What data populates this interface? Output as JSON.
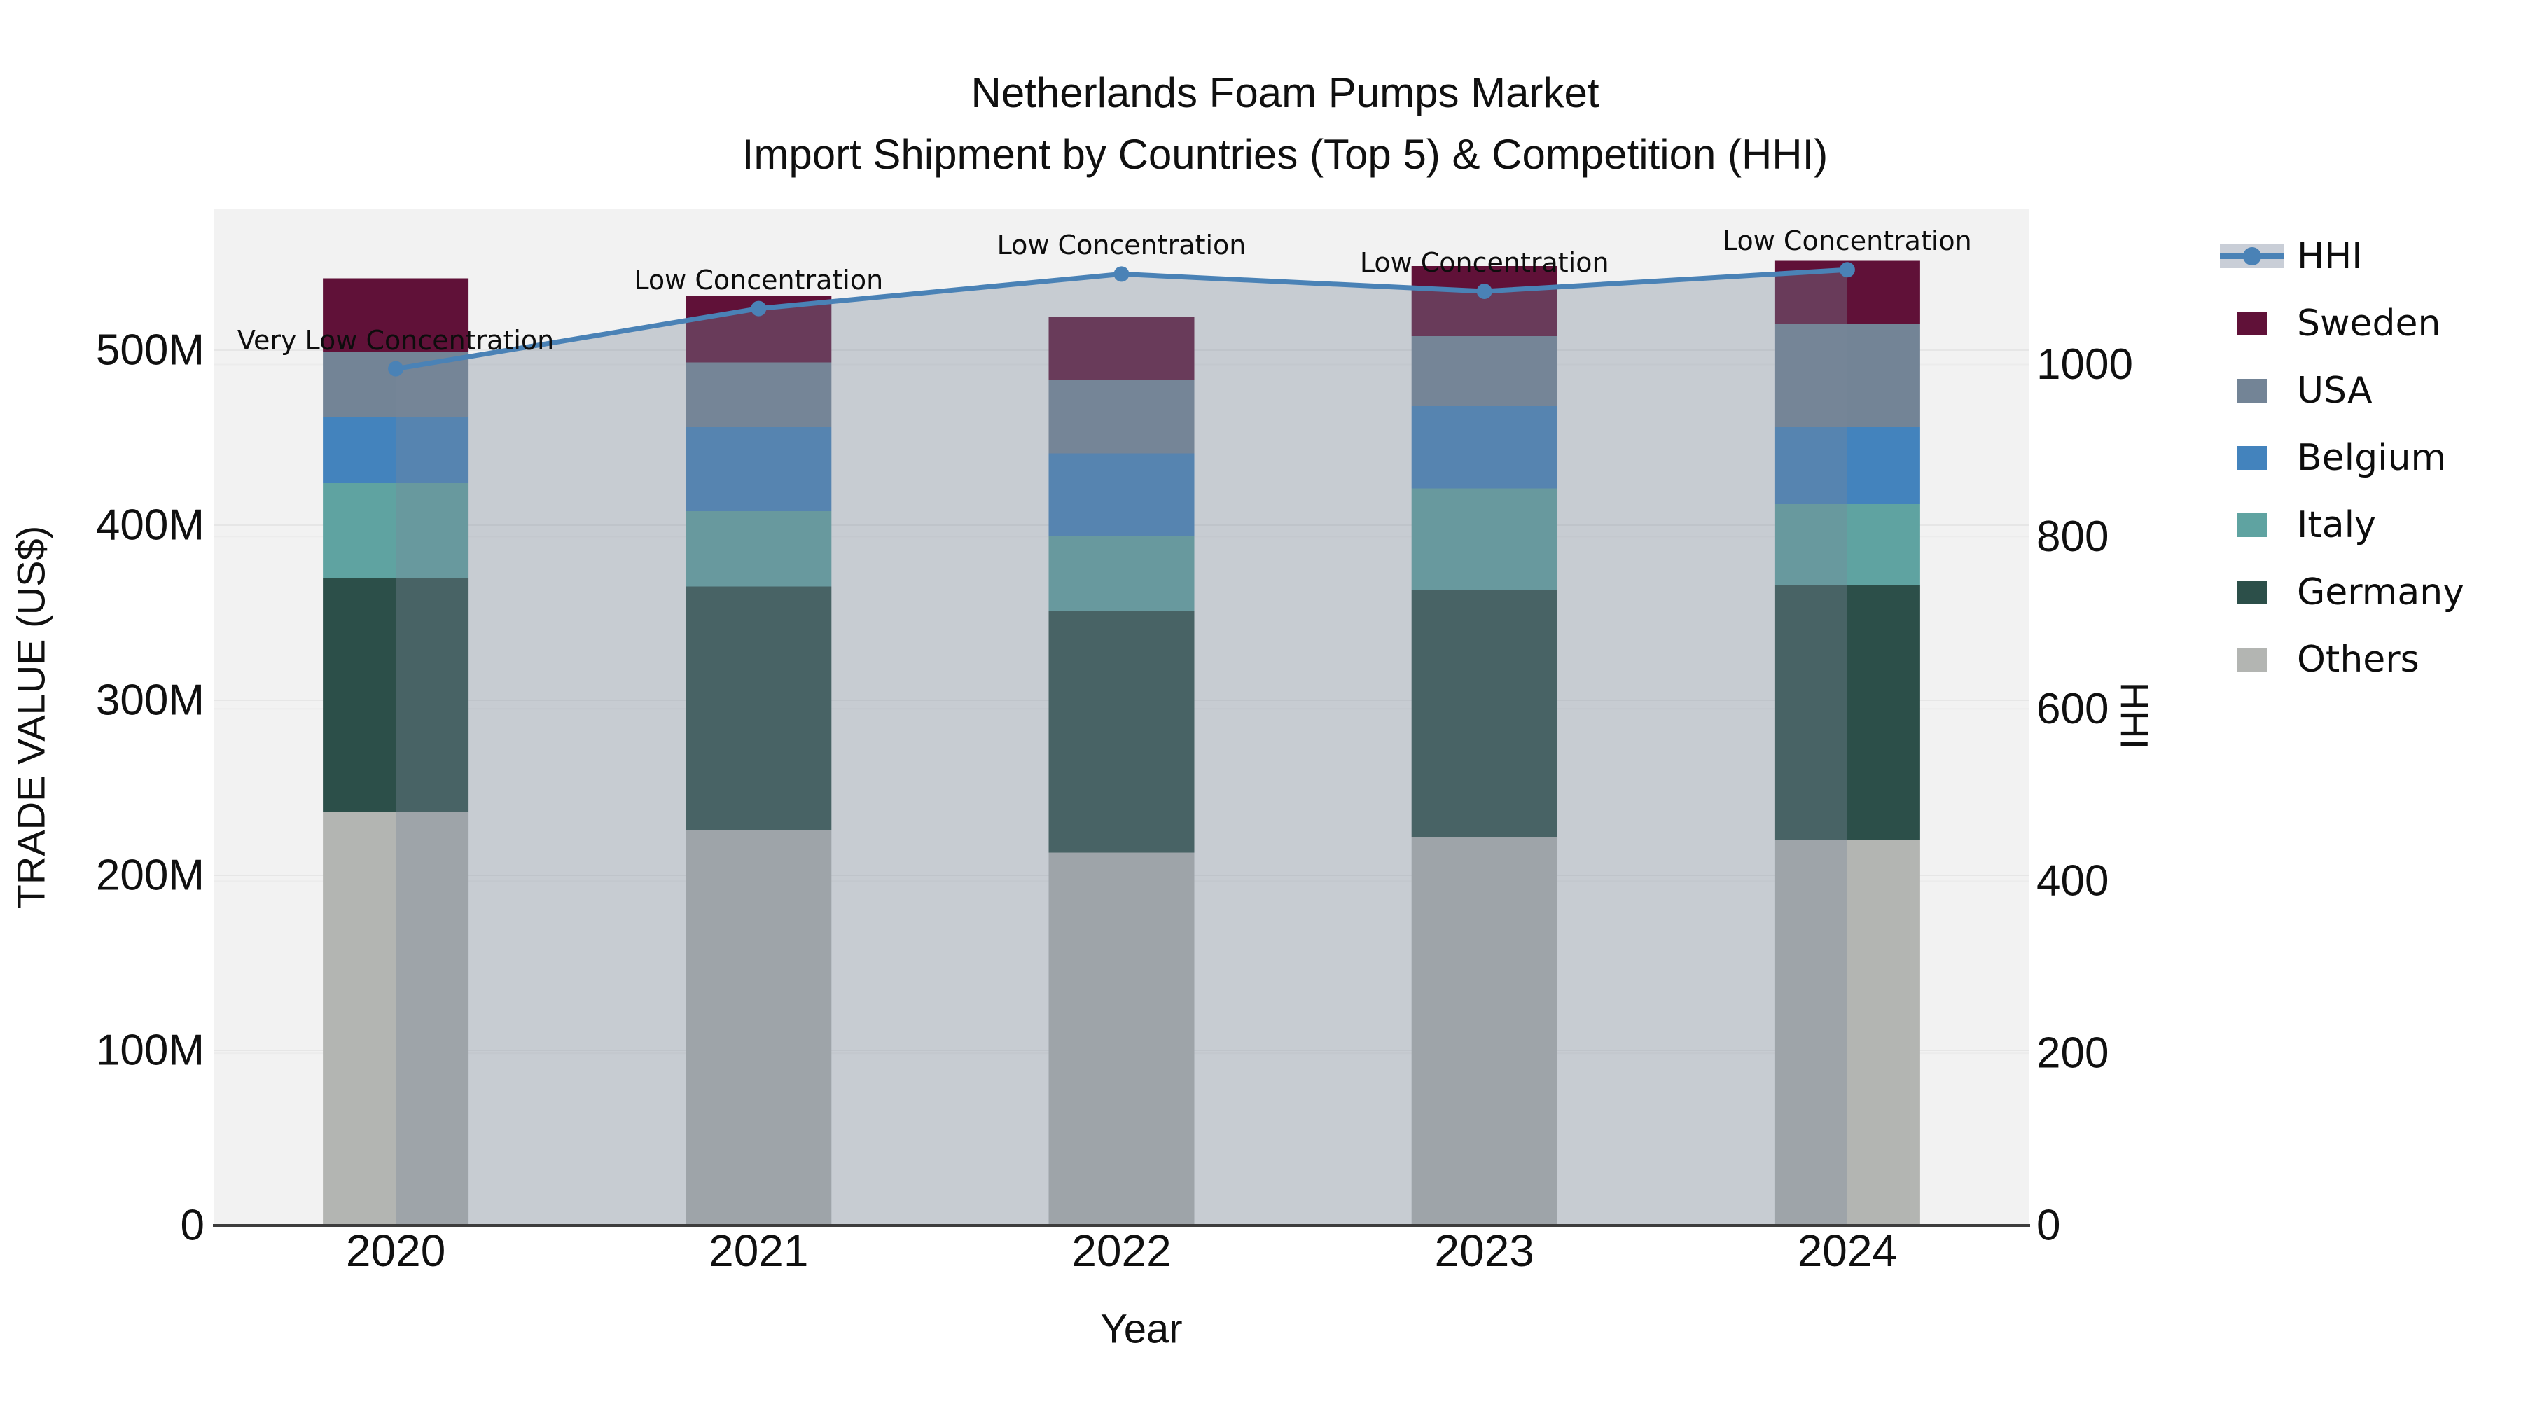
{
  "chart_data": {
    "type": "bar+line",
    "title": "Netherlands Foam Pumps Market",
    "subtitle": "Import Shipment by Countries (Top 5) & Competition (HHI)",
    "xlabel": "Year",
    "ylabel_left": "TRADE VALUE (US$)",
    "ylabel_right": "HHI",
    "categories": [
      "2020",
      "2021",
      "2022",
      "2023",
      "2024"
    ],
    "value_unit": "millions US$",
    "series": [
      {
        "name": "Others",
        "color": "#b3b5b2",
        "values": [
          236,
          226,
          213,
          222,
          220
        ]
      },
      {
        "name": "Germany",
        "color": "#2c4f49",
        "values": [
          134,
          139,
          138,
          141,
          146
        ]
      },
      {
        "name": "Italy",
        "color": "#5fa3a1",
        "values": [
          54,
          43,
          43,
          58,
          46
        ]
      },
      {
        "name": "Belgium",
        "color": "#4383bd",
        "values": [
          38,
          48,
          47,
          47,
          44
        ]
      },
      {
        "name": "USA",
        "color": "#738496",
        "values": [
          37,
          37,
          42,
          40,
          59
        ]
      },
      {
        "name": "Sweden",
        "color": "#601138",
        "values": [
          42,
          38,
          36,
          40,
          36
        ]
      }
    ],
    "hhi": {
      "name": "HHI",
      "line_color": "#4a82b6",
      "area_fill": "rgba(122,135,153,0.36)",
      "values": [
        995,
        1065,
        1105,
        1085,
        1110
      ],
      "annotations": [
        "Very Low Concentration",
        "Low Concentration",
        "Low Concentration",
        "Low Concentration",
        "Low Concentration"
      ]
    },
    "left_axis": {
      "tick_values": [
        0,
        100,
        200,
        300,
        400,
        500
      ],
      "tick_labels": [
        "0",
        "100M",
        "200M",
        "300M",
        "400M",
        "500M"
      ]
    },
    "right_axis": {
      "tick_values": [
        0,
        200,
        400,
        600,
        800,
        1000
      ],
      "tick_labels": [
        "0",
        "200",
        "400",
        "600",
        "800",
        "1000"
      ]
    },
    "legend": {
      "position": "right",
      "items": [
        {
          "label": "HHI",
          "type": "line-marker",
          "color": "#4a82b6",
          "band_color": "#c9ced7"
        },
        {
          "label": "Sweden",
          "type": "swatch",
          "color": "#601138"
        },
        {
          "label": "USA",
          "type": "swatch",
          "color": "#738496"
        },
        {
          "label": "Belgium",
          "type": "swatch",
          "color": "#4383bd"
        },
        {
          "label": "Italy",
          "type": "swatch",
          "color": "#5fa3a1"
        },
        {
          "label": "Germany",
          "type": "swatch",
          "color": "#2c4f49"
        },
        {
          "label": "Others",
          "type": "swatch",
          "color": "#b3b5b2"
        }
      ]
    },
    "style": {
      "plot_bg": "#f2f2f2",
      "grid_color_left": "#e6e6e6",
      "grid_color_right": "#ececec",
      "axis_line_color": "#3d3d3d"
    }
  }
}
